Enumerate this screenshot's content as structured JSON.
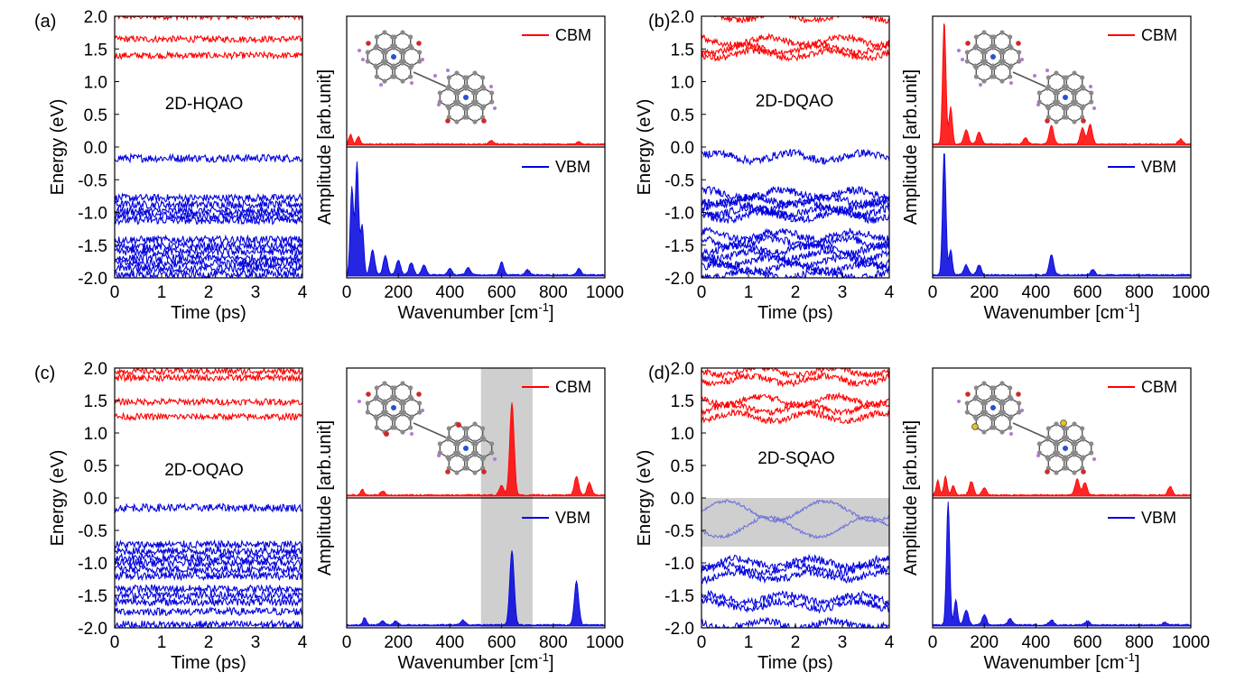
{
  "figure": {
    "panels": [
      {
        "label": "(a)",
        "name": "2D-HQAO"
      },
      {
        "label": "(b)",
        "name": "2D-DQAO"
      },
      {
        "label": "(c)",
        "name": "2D-OQAO"
      },
      {
        "label": "(d)",
        "name": "2D-SQAO"
      }
    ],
    "colors": {
      "cbm": "#ff0000",
      "vbm": "#0000dd",
      "highlight": "#cfcfcf",
      "molecule_carbon": "#8a8a8a",
      "molecule_n": "#2a52c9",
      "molecule_o": "#cc2b2b",
      "molecule_s": "#e8c21a",
      "molecule_h": "#b07ad8"
    },
    "icons": {
      "molecule": "molecule-structure-icon"
    }
  },
  "chart_data": [
    {
      "type": "line",
      "panel": "(a)",
      "kind": "energy-trajectory",
      "title": "2D-HQAO",
      "xlabel": "Time (ps)",
      "ylabel": "Energy (eV)",
      "xlim": [
        0,
        4
      ],
      "ylim": [
        -2.0,
        2.0
      ],
      "xticks": [
        "0",
        "1",
        "2",
        "3",
        "4"
      ],
      "yticks": [
        "2.0",
        "1.5",
        "1.0",
        "0.5",
        "0.0",
        "-0.5",
        "-1.0",
        "-1.5",
        "-2.0"
      ],
      "series": [
        {
          "name": "CBM",
          "levels_eV": [
            2.0,
            1.65,
            1.4
          ],
          "noise_eV": 0.05
        },
        {
          "name": "VBM",
          "levels_eV": [
            -0.17,
            -0.78,
            -0.88,
            -0.98,
            -1.05,
            -1.12,
            -1.42,
            -1.52,
            -1.6,
            -1.7,
            -1.78,
            -1.86,
            -1.95
          ],
          "noise_eV": 0.06
        }
      ]
    },
    {
      "type": "area",
      "panel": "(a)",
      "kind": "spectrum",
      "xlabel": "Wavenumber [cm-1]",
      "ylabel": "Amplitude [arb.unit]",
      "xlim": [
        0,
        1000
      ],
      "xticks": [
        "0",
        "200",
        "400",
        "600",
        "800",
        "1000"
      ],
      "series": [
        {
          "name": "CBM",
          "peaks": [
            [
              15,
              0.08
            ],
            [
              45,
              0.06
            ],
            [
              560,
              0.03
            ],
            [
              900,
              0.02
            ]
          ]
        },
        {
          "name": "VBM",
          "peaks": [
            [
              20,
              0.7
            ],
            [
              40,
              0.9
            ],
            [
              60,
              0.4
            ],
            [
              100,
              0.2
            ],
            [
              150,
              0.15
            ],
            [
              200,
              0.12
            ],
            [
              250,
              0.1
            ],
            [
              300,
              0.08
            ],
            [
              400,
              0.05
            ],
            [
              470,
              0.06
            ],
            [
              600,
              0.1
            ],
            [
              700,
              0.04
            ],
            [
              900,
              0.05
            ]
          ]
        }
      ]
    },
    {
      "type": "line",
      "panel": "(b)",
      "kind": "energy-trajectory",
      "title": "2D-DQAO",
      "xlabel": "Time (ps)",
      "ylabel": "Energy (eV)",
      "xlim": [
        0,
        4
      ],
      "ylim": [
        -2.0,
        2.0
      ],
      "xticks": [
        "0",
        "1",
        "2",
        "3",
        "4"
      ],
      "yticks": [
        "2.0",
        "1.5",
        "1.0",
        "0.5",
        "0.0",
        "-0.5",
        "-1.0",
        "-1.5",
        "-2.0"
      ],
      "series": [
        {
          "name": "CBM",
          "levels_eV": [
            2.0,
            1.62,
            1.5,
            1.42
          ],
          "noise_eV": 0.05
        },
        {
          "name": "VBM",
          "levels_eV": [
            -0.15,
            -0.72,
            -0.82,
            -0.9,
            -0.98,
            -1.05,
            -1.35,
            -1.45,
            -1.55,
            -1.65,
            -1.75,
            -1.85,
            -1.95
          ],
          "noise_eV": 0.06
        }
      ]
    },
    {
      "type": "area",
      "panel": "(b)",
      "kind": "spectrum",
      "xlabel": "Wavenumber [cm-1]",
      "ylabel": "Amplitude [arb.unit]",
      "xlim": [
        0,
        1000
      ],
      "xticks": [
        "0",
        "200",
        "400",
        "600",
        "800",
        "1000"
      ],
      "series": [
        {
          "name": "CBM",
          "peaks": [
            [
              45,
              1.0
            ],
            [
              70,
              0.3
            ],
            [
              130,
              0.12
            ],
            [
              180,
              0.1
            ],
            [
              360,
              0.05
            ],
            [
              460,
              0.15
            ],
            [
              580,
              0.13
            ],
            [
              610,
              0.16
            ],
            [
              960,
              0.04
            ]
          ]
        },
        {
          "name": "VBM",
          "peaks": [
            [
              45,
              1.0
            ],
            [
              70,
              0.2
            ],
            [
              130,
              0.08
            ],
            [
              180,
              0.08
            ],
            [
              460,
              0.16
            ],
            [
              620,
              0.04
            ]
          ]
        }
      ]
    },
    {
      "type": "line",
      "panel": "(c)",
      "kind": "energy-trajectory",
      "title": "2D-OQAO",
      "xlabel": "Time (ps)",
      "ylabel": "Energy (eV)",
      "xlim": [
        0,
        4
      ],
      "ylim": [
        -2.0,
        2.0
      ],
      "xticks": [
        "0",
        "1",
        "2",
        "3",
        "4"
      ],
      "yticks": [
        "2.0",
        "1.5",
        "1.0",
        "0.5",
        "0.0",
        "-0.5",
        "-1.0",
        "-1.5",
        "-2.0"
      ],
      "series": [
        {
          "name": "CBM",
          "levels_eV": [
            1.95,
            1.85,
            1.48,
            1.25
          ],
          "noise_eV": 0.05
        },
        {
          "name": "VBM",
          "levels_eV": [
            -0.15,
            -0.72,
            -0.82,
            -0.92,
            -1.0,
            -1.1,
            -1.2,
            -1.4,
            -1.5,
            -1.6,
            -1.75,
            -1.95
          ],
          "noise_eV": 0.06
        }
      ]
    },
    {
      "type": "area",
      "panel": "(c)",
      "kind": "spectrum",
      "xlabel": "Wavenumber [cm-1]",
      "ylabel": "Amplitude [arb.unit]",
      "xlim": [
        0,
        1000
      ],
      "xticks": [
        "0",
        "200",
        "400",
        "600",
        "800",
        "1000"
      ],
      "highlight_range": [
        520,
        720
      ],
      "series": [
        {
          "name": "CBM",
          "peaks": [
            [
              60,
              0.05
            ],
            [
              140,
              0.03
            ],
            [
              600,
              0.08
            ],
            [
              640,
              0.75
            ],
            [
              890,
              0.15
            ],
            [
              940,
              0.1
            ]
          ]
        },
        {
          "name": "VBM",
          "peaks": [
            [
              70,
              0.06
            ],
            [
              140,
              0.03
            ],
            [
              190,
              0.03
            ],
            [
              450,
              0.04
            ],
            [
              640,
              0.6
            ],
            [
              890,
              0.35
            ]
          ]
        }
      ]
    },
    {
      "type": "line",
      "panel": "(d)",
      "kind": "energy-trajectory",
      "title": "2D-SQAO",
      "xlabel": "Time (ps)",
      "ylabel": "Energy (eV)",
      "xlim": [
        0,
        4
      ],
      "ylim": [
        -2.0,
        2.0
      ],
      "xticks": [
        "0",
        "1",
        "2",
        "3",
        "4"
      ],
      "yticks": [
        "2.0",
        "1.5",
        "1.0",
        "0.5",
        "0.0",
        "-0.5",
        "-1.0",
        "-1.5",
        "-2.0"
      ],
      "highlight_range_eV": [
        -0.75,
        0.0
      ],
      "series": [
        {
          "name": "CBM",
          "levels_eV": [
            1.95,
            1.82,
            1.5,
            1.38,
            1.25
          ],
          "noise_eV": 0.05
        },
        {
          "name": "VBM",
          "levels_eV": [
            -0.2,
            -0.45,
            -1.0,
            -1.1,
            -1.2,
            -1.55,
            -1.65,
            -1.95
          ],
          "noise_eV": 0.06
        }
      ]
    },
    {
      "type": "area",
      "panel": "(d)",
      "kind": "spectrum",
      "xlabel": "Wavenumber [cm-1]",
      "ylabel": "Amplitude [arb.unit]",
      "xlim": [
        0,
        1000
      ],
      "xticks": [
        "0",
        "200",
        "400",
        "600",
        "800",
        "1000"
      ],
      "series": [
        {
          "name": "CBM",
          "peaks": [
            [
              20,
              0.12
            ],
            [
              50,
              0.15
            ],
            [
              80,
              0.08
            ],
            [
              150,
              0.11
            ],
            [
              200,
              0.06
            ],
            [
              560,
              0.13
            ],
            [
              590,
              0.1
            ],
            [
              920,
              0.07
            ]
          ]
        },
        {
          "name": "VBM",
          "peaks": [
            [
              60,
              1.0
            ],
            [
              90,
              0.2
            ],
            [
              130,
              0.12
            ],
            [
              200,
              0.08
            ],
            [
              300,
              0.05
            ],
            [
              460,
              0.04
            ],
            [
              600,
              0.03
            ],
            [
              900,
              0.02
            ]
          ]
        }
      ]
    }
  ]
}
